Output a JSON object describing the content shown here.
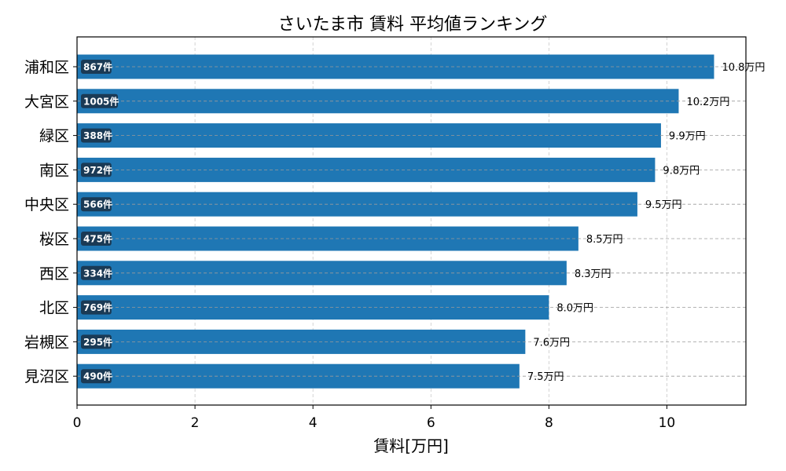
{
  "chart_data": {
    "type": "bar",
    "orientation": "horizontal",
    "title": "さいたま市 賃料 平均値ランキング",
    "xlabel": "賃料[万円]",
    "ylabel": "",
    "xlim": [
      0,
      11.34
    ],
    "xticks": [
      "0",
      "2",
      "4",
      "6",
      "8",
      "10"
    ],
    "grid": true,
    "categories": [
      "浦和区",
      "大宮区",
      "緑区",
      "南区",
      "中央区",
      "桜区",
      "西区",
      "北区",
      "岩槻区",
      "見沼区"
    ],
    "values": [
      10.8,
      10.2,
      9.9,
      9.8,
      9.5,
      8.5,
      8.3,
      8.0,
      7.6,
      7.5
    ],
    "value_labels": [
      "10.8万円",
      "10.2万円",
      "9.9万円",
      "9.8万円",
      "9.5万円",
      "8.5万円",
      "8.3万円",
      "8.0万円",
      "7.6万円",
      "7.5万円"
    ],
    "count_labels": [
      "867件",
      "1005件",
      "388件",
      "972件",
      "566件",
      "475件",
      "334件",
      "769件",
      "295件",
      "490件"
    ],
    "colors": {
      "bar": "#1f77b4",
      "badge": "#1a3a55"
    }
  }
}
